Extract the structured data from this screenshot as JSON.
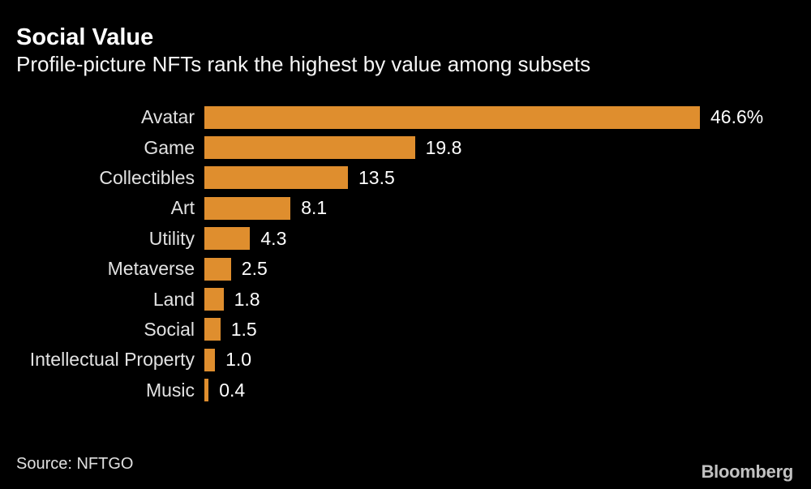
{
  "header": {
    "title": "Social Value",
    "subtitle": "Profile-picture NFTs rank the highest by value among subsets"
  },
  "footer": {
    "source": "Source: NFTGO",
    "brand": "Bloomberg"
  },
  "colors": {
    "background": "#000000",
    "bar": "#df8e2e",
    "title": "#ffffff",
    "category_label": "#e2e2e2",
    "value_label": "#ffffff",
    "source_text": "#e0e0e0",
    "brand_text": "#c2c2c2"
  },
  "chart_data": {
    "type": "bar",
    "orientation": "horizontal",
    "title": "Social Value",
    "subtitle": "Profile-picture NFTs rank the highest by value among subsets",
    "xlabel": "",
    "ylabel": "",
    "unit": "%",
    "xlim": [
      0,
      46.6
    ],
    "grid": false,
    "legend": false,
    "source": "NFTGO",
    "categories": [
      "Avatar",
      "Game",
      "Collectibles",
      "Art",
      "Utility",
      "Metaverse",
      "Land",
      "Social",
      "Intellectual Property",
      "Music"
    ],
    "values": [
      46.6,
      19.8,
      13.5,
      8.1,
      4.3,
      2.5,
      1.8,
      1.5,
      1.0,
      0.4
    ],
    "value_labels": [
      "46.6%",
      "19.8",
      "13.5",
      "8.1",
      "4.3",
      "2.5",
      "1.8",
      "1.5",
      "1.0",
      "0.4"
    ]
  }
}
